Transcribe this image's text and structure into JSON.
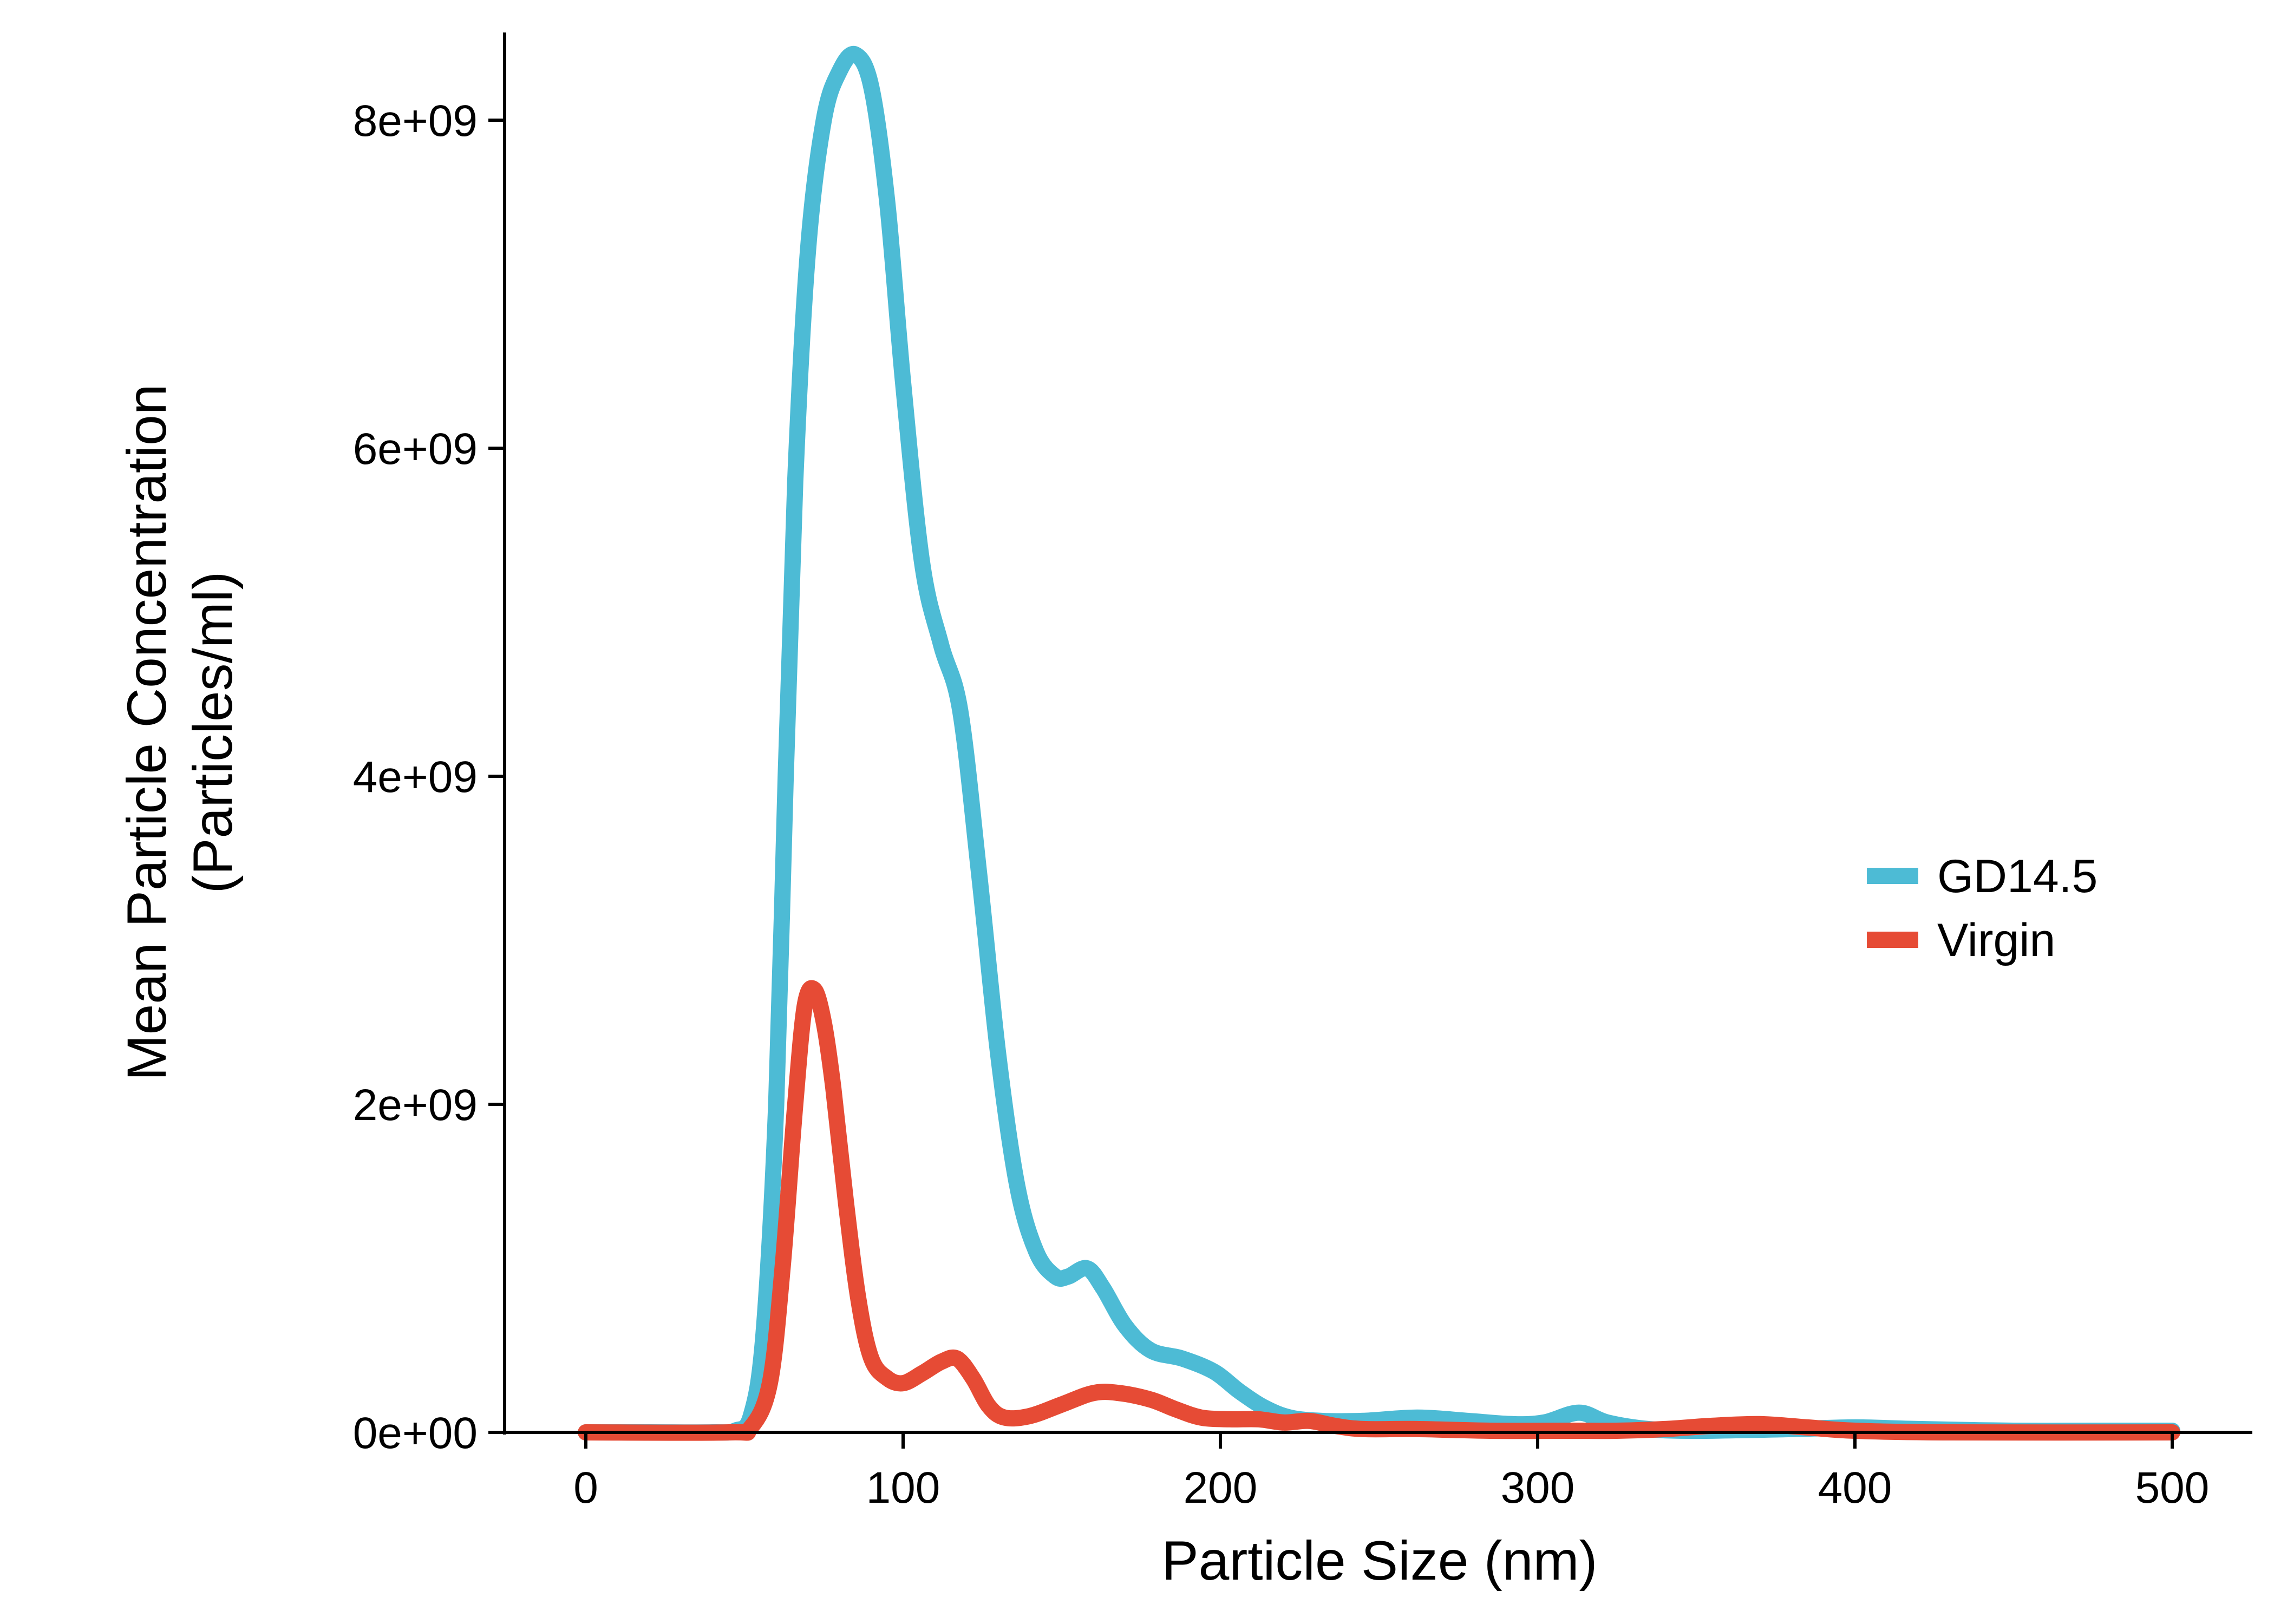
{
  "chart_data": {
    "type": "line",
    "xlabel": "Particle Size (nm)",
    "ylabel_lines": [
      "Mean Particle Concentration",
      "(Particles/ml)"
    ],
    "xlim": [
      -28,
      525
    ],
    "ylim": [
      0,
      8500000000.0
    ],
    "xticks": [
      0,
      100,
      200,
      300,
      400,
      500
    ],
    "xtick_labels": [
      "0",
      "100",
      "200",
      "300",
      "400",
      "500"
    ],
    "yticks": [
      0,
      2000000000.0,
      4000000000.0,
      6000000000.0,
      8000000000.0
    ],
    "ytick_labels": [
      "0e+00",
      "2e+09",
      "4e+09",
      "6e+09",
      "8e+09"
    ],
    "grid": false,
    "legend_position": "right",
    "series": [
      {
        "name": "GD14.5",
        "color": "#4DBBD5",
        "points": [
          [
            0,
            0
          ],
          [
            20,
            0
          ],
          [
            40,
            0
          ],
          [
            47,
            10000000.0
          ],
          [
            52,
            100000000.0
          ],
          [
            56,
            600000000.0
          ],
          [
            60,
            2000000000.0
          ],
          [
            63,
            4000000000.0
          ],
          [
            66,
            5800000000.0
          ],
          [
            70,
            7200000000.0
          ],
          [
            75,
            8000000000.0
          ],
          [
            80,
            8300000000.0
          ],
          [
            85,
            8400000000.0
          ],
          [
            90,
            8200000000.0
          ],
          [
            95,
            7500000000.0
          ],
          [
            100,
            6400000000.0
          ],
          [
            106,
            5300000000.0
          ],
          [
            112,
            4800000000.0
          ],
          [
            118,
            4400000000.0
          ],
          [
            124,
            3400000000.0
          ],
          [
            130,
            2300000000.0
          ],
          [
            136,
            1500000000.0
          ],
          [
            142,
            1100000000.0
          ],
          [
            148,
            950000000.0
          ],
          [
            152,
            950000000.0
          ],
          [
            158,
            1000000000.0
          ],
          [
            163,
            880000000.0
          ],
          [
            170,
            650000000.0
          ],
          [
            178,
            500000000.0
          ],
          [
            188,
            450000000.0
          ],
          [
            198,
            370000000.0
          ],
          [
            206,
            250000000.0
          ],
          [
            214,
            150000000.0
          ],
          [
            222,
            90000000.0
          ],
          [
            232,
            70000000.0
          ],
          [
            245,
            70000000.0
          ],
          [
            262,
            90000000.0
          ],
          [
            278,
            70000000.0
          ],
          [
            292,
            50000000.0
          ],
          [
            302,
            60000000.0
          ],
          [
            313,
            120000000.0
          ],
          [
            322,
            60000000.0
          ],
          [
            335,
            20000000.0
          ],
          [
            350,
            10000000.0
          ],
          [
            380,
            20000000.0
          ],
          [
            400,
            30000000.0
          ],
          [
            420,
            20000000.0
          ],
          [
            450,
            10000000.0
          ],
          [
            480,
            10000000.0
          ],
          [
            500,
            10000000.0
          ]
        ]
      },
      {
        "name": "Virgin",
        "color": "#E64B35",
        "points": [
          [
            0,
            0
          ],
          [
            45,
            0
          ],
          [
            52,
            30000000.0
          ],
          [
            58,
            300000000.0
          ],
          [
            62,
            1000000000.0
          ],
          [
            66,
            2000000000.0
          ],
          [
            69,
            2600000000.0
          ],
          [
            72,
            2700000000.0
          ],
          [
            75,
            2500000000.0
          ],
          [
            78,
            2100000000.0
          ],
          [
            82,
            1400000000.0
          ],
          [
            86,
            800000000.0
          ],
          [
            90,
            450000000.0
          ],
          [
            95,
            330000000.0
          ],
          [
            100,
            300000000.0
          ],
          [
            106,
            360000000.0
          ],
          [
            112,
            430000000.0
          ],
          [
            117,
            450000000.0
          ],
          [
            122,
            330000000.0
          ],
          [
            127,
            160000000.0
          ],
          [
            132,
            90000000.0
          ],
          [
            140,
            100000000.0
          ],
          [
            150,
            170000000.0
          ],
          [
            160,
            240000000.0
          ],
          [
            168,
            240000000.0
          ],
          [
            178,
            200000000.0
          ],
          [
            186,
            140000000.0
          ],
          [
            194,
            90000000.0
          ],
          [
            203,
            80000000.0
          ],
          [
            212,
            80000000.0
          ],
          [
            220,
            60000000.0
          ],
          [
            228,
            70000000.0
          ],
          [
            236,
            40000000.0
          ],
          [
            245,
            20000000.0
          ],
          [
            262,
            20000000.0
          ],
          [
            285,
            10000000.0
          ],
          [
            310,
            10000000.0
          ],
          [
            325,
            10000000.0
          ],
          [
            340,
            20000000.0
          ],
          [
            355,
            40000000.0
          ],
          [
            370,
            50000000.0
          ],
          [
            385,
            30000000.0
          ],
          [
            400,
            10000000.0
          ],
          [
            430,
            0.0
          ],
          [
            500,
            0.0
          ]
        ]
      }
    ]
  }
}
